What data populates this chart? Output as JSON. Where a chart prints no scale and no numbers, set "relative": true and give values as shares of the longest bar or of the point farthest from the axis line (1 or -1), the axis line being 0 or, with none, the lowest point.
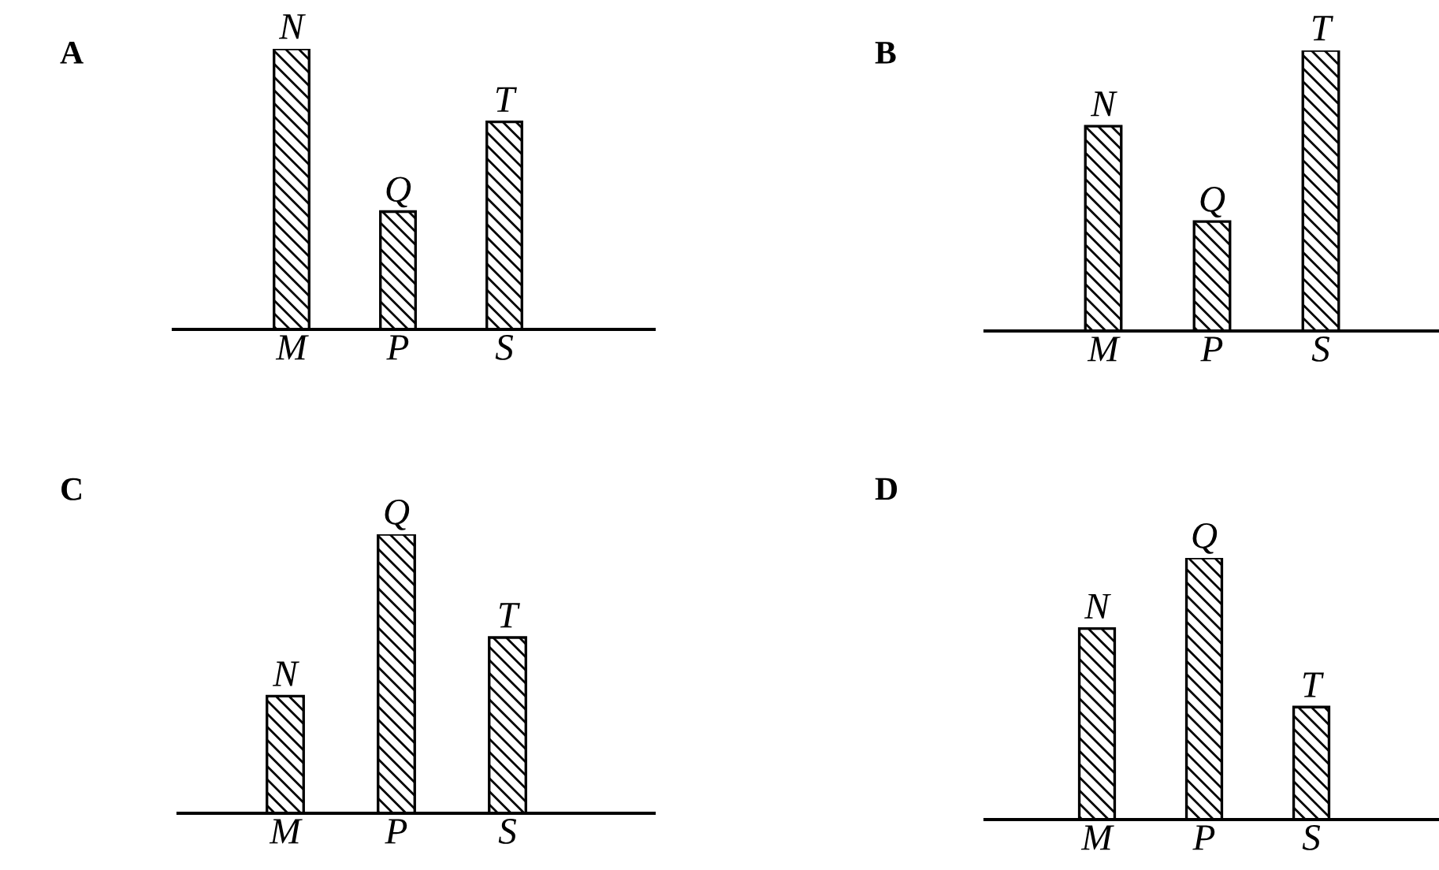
{
  "chart_data": [
    {
      "type": "bar",
      "title": "A",
      "relative": true,
      "categories": [
        "M",
        "P",
        "S"
      ],
      "color": "#000000",
      "values": [
        1,
        0.42,
        0.74
      ],
      "annotations": [
        {
          "text": "N",
          "x": "M",
          "y": 1
        },
        {
          "text": "Q",
          "x": "P",
          "y": 0.42
        },
        {
          "text": "T",
          "x": "S",
          "y": 0.74
        }
      ],
      "grid": false,
      "legend": false
    },
    {
      "type": "bar",
      "title": "B",
      "relative": true,
      "categories": [
        "M",
        "P",
        "S"
      ],
      "color": "#000000",
      "values": [
        0.73,
        0.39,
        1
      ],
      "annotations": [
        {
          "text": "N",
          "x": "M",
          "y": 0.73
        },
        {
          "text": "Q",
          "x": "P",
          "y": 0.39
        },
        {
          "text": "T",
          "x": "S",
          "y": 1
        }
      ],
      "grid": false,
      "legend": false
    },
    {
      "type": "bar",
      "title": "C",
      "relative": true,
      "categories": [
        "M",
        "P",
        "S"
      ],
      "color": "#000000",
      "values": [
        0.42,
        1,
        0.63
      ],
      "annotations": [
        {
          "text": "N",
          "x": "M",
          "y": 0.42
        },
        {
          "text": "Q",
          "x": "P",
          "y": 1
        },
        {
          "text": "T",
          "x": "S",
          "y": 0.63
        }
      ],
      "grid": false,
      "legend": false
    },
    {
      "type": "bar",
      "title": "D",
      "relative": true,
      "categories": [
        "M",
        "P",
        "S"
      ],
      "color": "#000000",
      "values": [
        0.73,
        1,
        0.43
      ],
      "annotations": [
        {
          "text": "N",
          "x": "M",
          "y": 0.73
        },
        {
          "text": "Q",
          "x": "P",
          "y": 1
        },
        {
          "text": "T",
          "x": "S",
          "y": 0.43
        }
      ],
      "grid": false,
      "legend": false
    }
  ]
}
